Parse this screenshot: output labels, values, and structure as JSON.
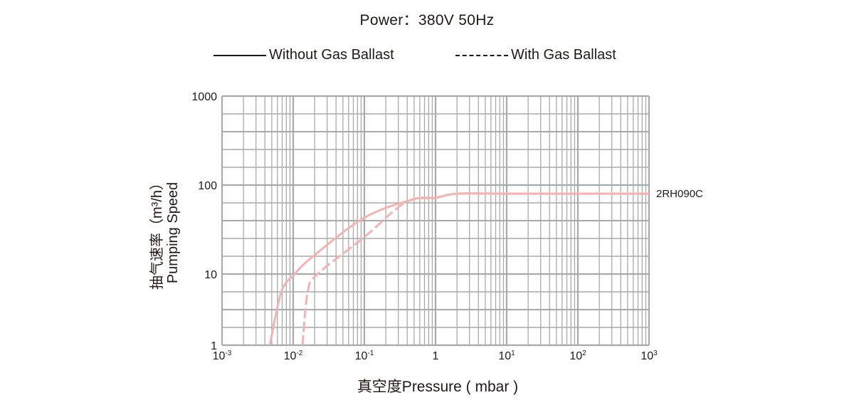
{
  "header": {
    "title": "Power：380V 50Hz"
  },
  "legend": [
    {
      "label": "Without Gas Ballast",
      "style": "solid"
    },
    {
      "label": "With Gas Ballast",
      "style": "dashed"
    }
  ],
  "axes": {
    "ylabel_cn": "抽气速率（m³/h）",
    "ylabel_en": "Pumping Speed",
    "xlabel": "真空度Pressure ( mbar )",
    "y_ticks": [
      "1000",
      "100",
      "10",
      "1"
    ],
    "x_ticks": [
      {
        "base": "10",
        "exp": "-3"
      },
      {
        "base": "10",
        "exp": "-2"
      },
      {
        "base": "10",
        "exp": "-1"
      },
      {
        "base": "1",
        "exp": ""
      },
      {
        "base": "10",
        "exp": "1"
      },
      {
        "base": "10",
        "exp": "2"
      },
      {
        "base": "10",
        "exp": "3"
      }
    ]
  },
  "series_label": "2RH090C",
  "colors": {
    "curve": "#f4b3b3",
    "grid": "#a9a9a9",
    "text": "#231815"
  },
  "chart_data": {
    "type": "line",
    "title": "Power：380V 50Hz",
    "xlabel": "真空度Pressure ( mbar )",
    "ylabel": "抽气速率（m³/h） Pumping Speed",
    "xscale": "log",
    "yscale": "log",
    "xlim": [
      0.001,
      1000
    ],
    "ylim": [
      1,
      1000
    ],
    "grid": true,
    "legend_position": "top",
    "annotation": "2RH090C",
    "series": [
      {
        "name": "Without Gas Ballast",
        "style": "solid",
        "x": [
          0.0047,
          0.0068,
          0.0105,
          0.019,
          0.1,
          0.48,
          1,
          2,
          10,
          100,
          1000
        ],
        "y": [
          1,
          5.6,
          10,
          15.8,
          43,
          69,
          72,
          80,
          80,
          80,
          80
        ]
      },
      {
        "name": "With Gas Ballast",
        "style": "dashed",
        "x": [
          0.0135,
          0.016,
          0.022,
          0.1,
          0.38,
          1,
          2,
          10,
          100,
          1000
        ],
        "y": [
          1,
          5.6,
          10,
          26,
          64,
          72,
          80,
          80,
          80,
          80
        ]
      }
    ]
  }
}
